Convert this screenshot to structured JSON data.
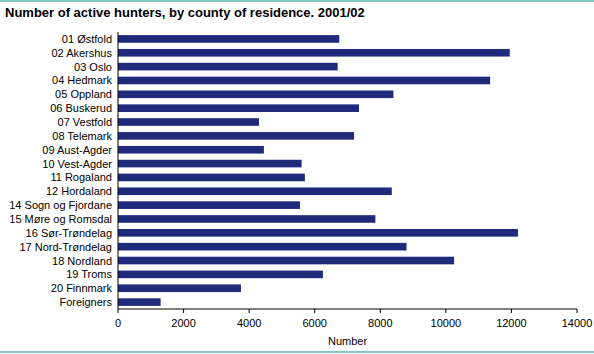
{
  "chart_data": {
    "type": "bar",
    "orientation": "horizontal",
    "title": "Number of active hunters, by county of residence. 2001/02",
    "x_label": "Number",
    "categories": [
      "01 Østfold",
      "02 Akershus",
      "03 Oslo",
      "04 Hedmark",
      "05 Oppland",
      "06 Buskerud",
      "07 Vestfold",
      "08 Telemark",
      "09 Aust-Agder",
      "10 Vest-Agder",
      "11 Rogaland",
      "12 Hordaland",
      "14 Sogn og Fjordane",
      "15 Møre og Romsdal",
      "16 Sør-Trøndelag",
      "17 Nord-Trøndelag",
      "18 Nordland",
      "19 Troms",
      "20 Finnmark",
      "Foreigners"
    ],
    "values": [
      6750,
      11950,
      6700,
      11350,
      8400,
      7350,
      4300,
      7200,
      4450,
      5600,
      5700,
      8350,
      5550,
      7850,
      12200,
      8800,
      10250,
      6250,
      3750,
      1300
    ],
    "color": "#1f2a7c",
    "xlim": [
      0,
      14000
    ],
    "xticks": [
      0,
      2000,
      4000,
      6000,
      8000,
      10000,
      12000,
      14000
    ],
    "grid": false
  }
}
